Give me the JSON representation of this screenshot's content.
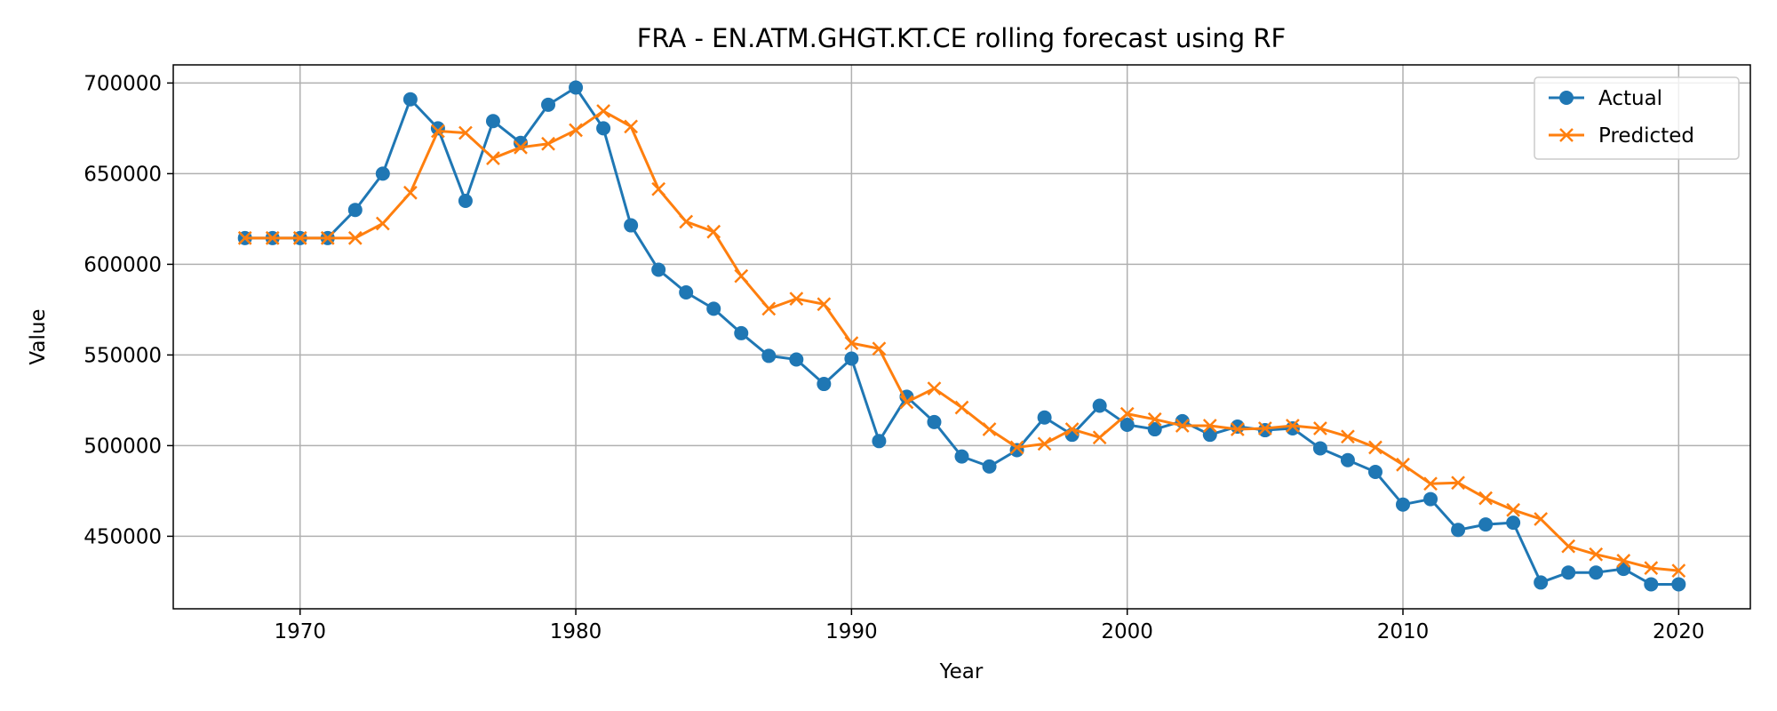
{
  "chart_data": {
    "type": "line",
    "title": "FRA - EN.ATM.GHGT.KT.CE rolling forecast using RF",
    "xlabel": "Year",
    "ylabel": "Value",
    "xlim": [
      1965.4,
      2022.6
    ],
    "ylim": [
      410000,
      710000
    ],
    "xticks": [
      1970,
      1980,
      1990,
      2000,
      2010,
      2020
    ],
    "yticks": [
      450000,
      500000,
      550000,
      600000,
      650000,
      700000
    ],
    "grid": true,
    "legend_position": "top-right",
    "x": [
      1968,
      1969,
      1970,
      1971,
      1972,
      1973,
      1974,
      1975,
      1976,
      1977,
      1978,
      1979,
      1980,
      1981,
      1982,
      1983,
      1984,
      1985,
      1986,
      1987,
      1988,
      1989,
      1990,
      1991,
      1992,
      1993,
      1994,
      1995,
      1996,
      1997,
      1998,
      1999,
      2000,
      2001,
      2002,
      2003,
      2004,
      2005,
      2006,
      2007,
      2008,
      2009,
      2010,
      2011,
      2012,
      2013,
      2014,
      2015,
      2016,
      2017,
      2018,
      2019,
      2020
    ],
    "series": [
      {
        "name": "Actual",
        "color": "#1f77b4",
        "marker": "circle",
        "values": [
          614500,
          614500,
          614500,
          614500,
          630000,
          650000,
          691000,
          675000,
          635000,
          679000,
          667000,
          688000,
          697500,
          675000,
          621500,
          597000,
          584500,
          575500,
          562000,
          549500,
          547500,
          534000,
          548000,
          502500,
          527000,
          513000,
          494000,
          488500,
          497500,
          515500,
          506000,
          522000,
          511500,
          509000,
          513500,
          506000,
          510500,
          508500,
          509500,
          498500,
          492000,
          485500,
          467500,
          470500,
          453500,
          456500,
          457500,
          424500,
          430000,
          430000,
          432000,
          423500,
          423500
        ]
      },
      {
        "name": "Predicted",
        "color": "#ff7f0e",
        "marker": "x",
        "values": [
          614500,
          614500,
          614500,
          614500,
          614500,
          622500,
          639500,
          673500,
          672500,
          658500,
          664500,
          666500,
          674000,
          684500,
          676000,
          641500,
          623500,
          618000,
          593500,
          575500,
          581000,
          578000,
          556500,
          553500,
          524000,
          531500,
          521000,
          509000,
          499000,
          501000,
          509000,
          504500,
          517500,
          514500,
          511000,
          511000,
          509000,
          509500,
          511000,
          509500,
          505000,
          499000,
          489500,
          479000,
          479500,
          471000,
          464500,
          459500,
          444500,
          440000,
          436500,
          432500,
          431000
        ]
      }
    ]
  }
}
